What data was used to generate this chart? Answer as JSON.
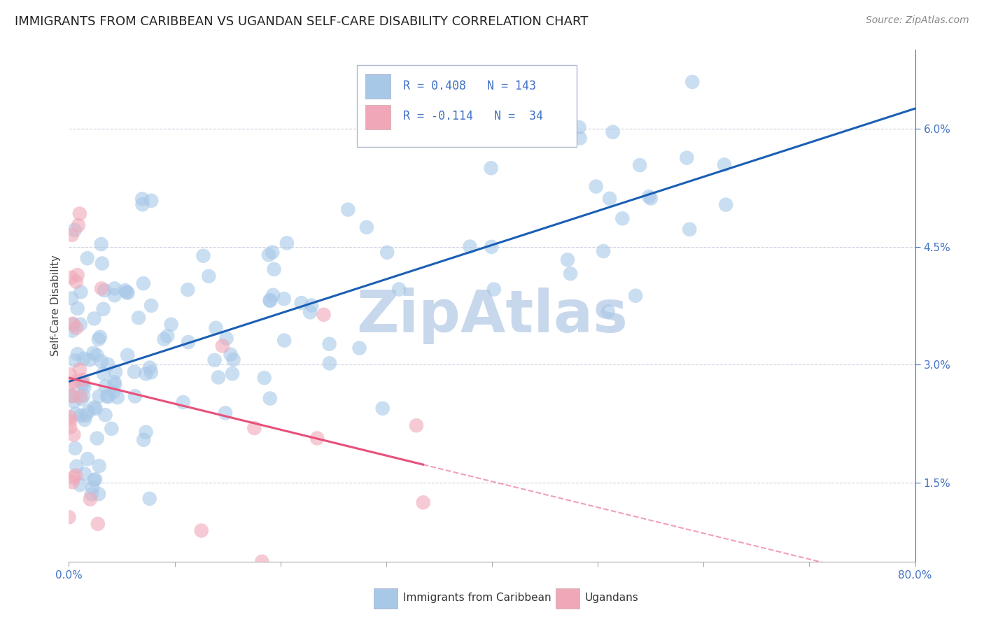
{
  "title": "IMMIGRANTS FROM CARIBBEAN VS UGANDAN SELF-CARE DISABILITY CORRELATION CHART",
  "source": "Source: ZipAtlas.com",
  "ylabel": "Self-Care Disability",
  "y_ticks": [
    0.015,
    0.03,
    0.045,
    0.06
  ],
  "y_tick_labels": [
    "1.5%",
    "3.0%",
    "4.5%",
    "6.0%"
  ],
  "xlim": [
    0.0,
    0.8
  ],
  "ylim": [
    0.005,
    0.07
  ],
  "legend_r1_val": "0.408",
  "legend_n1_val": "143",
  "legend_r2_val": "-0.114",
  "legend_n2_val": " 34",
  "legend_label1": "Immigrants from Caribbean",
  "legend_label2": "Ugandans",
  "blue_color": "#a8c8e8",
  "pink_color": "#f0a8b8",
  "blue_line_color": "#1a5fb4",
  "pink_line_color": "#e8507a",
  "legend_text_color": "#4472c4",
  "watermark": "ZipAtlas",
  "watermark_color": "#c8d8ec",
  "background_color": "#ffffff",
  "grid_color": "#d0d0e0",
  "title_fontsize": 13,
  "source_fontsize": 10,
  "axis_label_fontsize": 11,
  "tick_label_color": "#4472c4"
}
